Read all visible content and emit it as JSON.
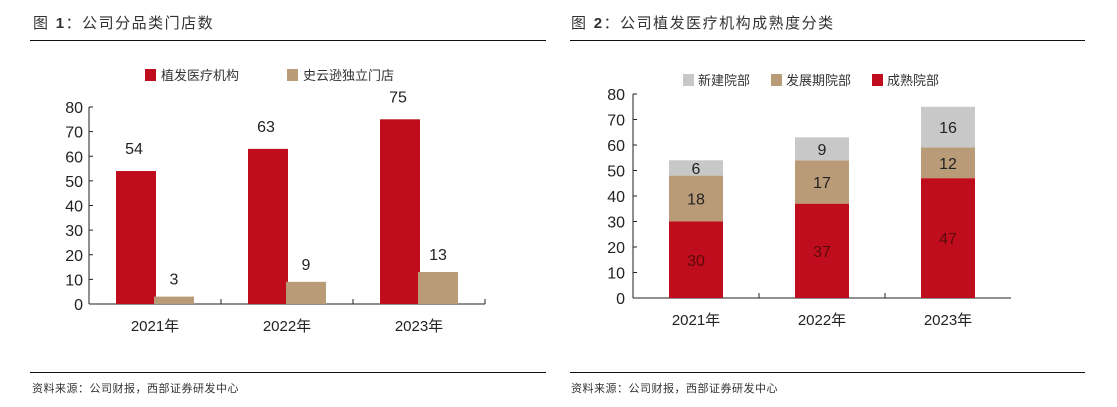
{
  "figures": [
    {
      "title_prefix": "图 ",
      "title_num": "1",
      "title_text": "：公司分品类门店数",
      "source": "资料来源：公司财报，西部证券研发中心"
    },
    {
      "title_prefix": "图 ",
      "title_num": "2",
      "title_text": "：公司植发医疗机构成熟度分类",
      "source": "资料来源：公司财报，西部证券研发中心"
    }
  ],
  "chart_data": [
    {
      "type": "bar",
      "title": "公司分品类门店数",
      "categories": [
        "2021年",
        "2022年",
        "2023年"
      ],
      "series": [
        {
          "name": "植发医疗机构",
          "values": [
            54,
            63,
            75
          ],
          "color": "#C00D1E"
        },
        {
          "name": "史云逊独立门店",
          "values": [
            3,
            9,
            13
          ],
          "color": "#B99B77"
        }
      ],
      "ylim": [
        0,
        80
      ],
      "yticks": [
        0,
        10,
        20,
        30,
        40,
        50,
        60,
        70,
        80
      ],
      "xlabel": "",
      "ylabel": "",
      "legend": "top-center",
      "grid": false
    },
    {
      "type": "bar",
      "stacked": true,
      "title": "公司植发医疗机构成熟度分类",
      "categories": [
        "2021年",
        "2022年",
        "2023年"
      ],
      "series": [
        {
          "name": "成熟院部",
          "values": [
            30,
            37,
            47
          ],
          "color": "#C00D1E"
        },
        {
          "name": "发展期院部",
          "values": [
            18,
            17,
            12
          ],
          "color": "#B99B77"
        },
        {
          "name": "新建院部",
          "values": [
            6,
            9,
            16
          ],
          "color": "#C8C8C8"
        }
      ],
      "legend_order": [
        "新建院部",
        "发展期院部",
        "成熟院部"
      ],
      "ylim": [
        0,
        80
      ],
      "yticks": [
        0,
        10,
        20,
        30,
        40,
        50,
        60,
        70,
        80
      ],
      "xlabel": "",
      "ylabel": "",
      "legend": "top-center",
      "grid": false
    }
  ]
}
